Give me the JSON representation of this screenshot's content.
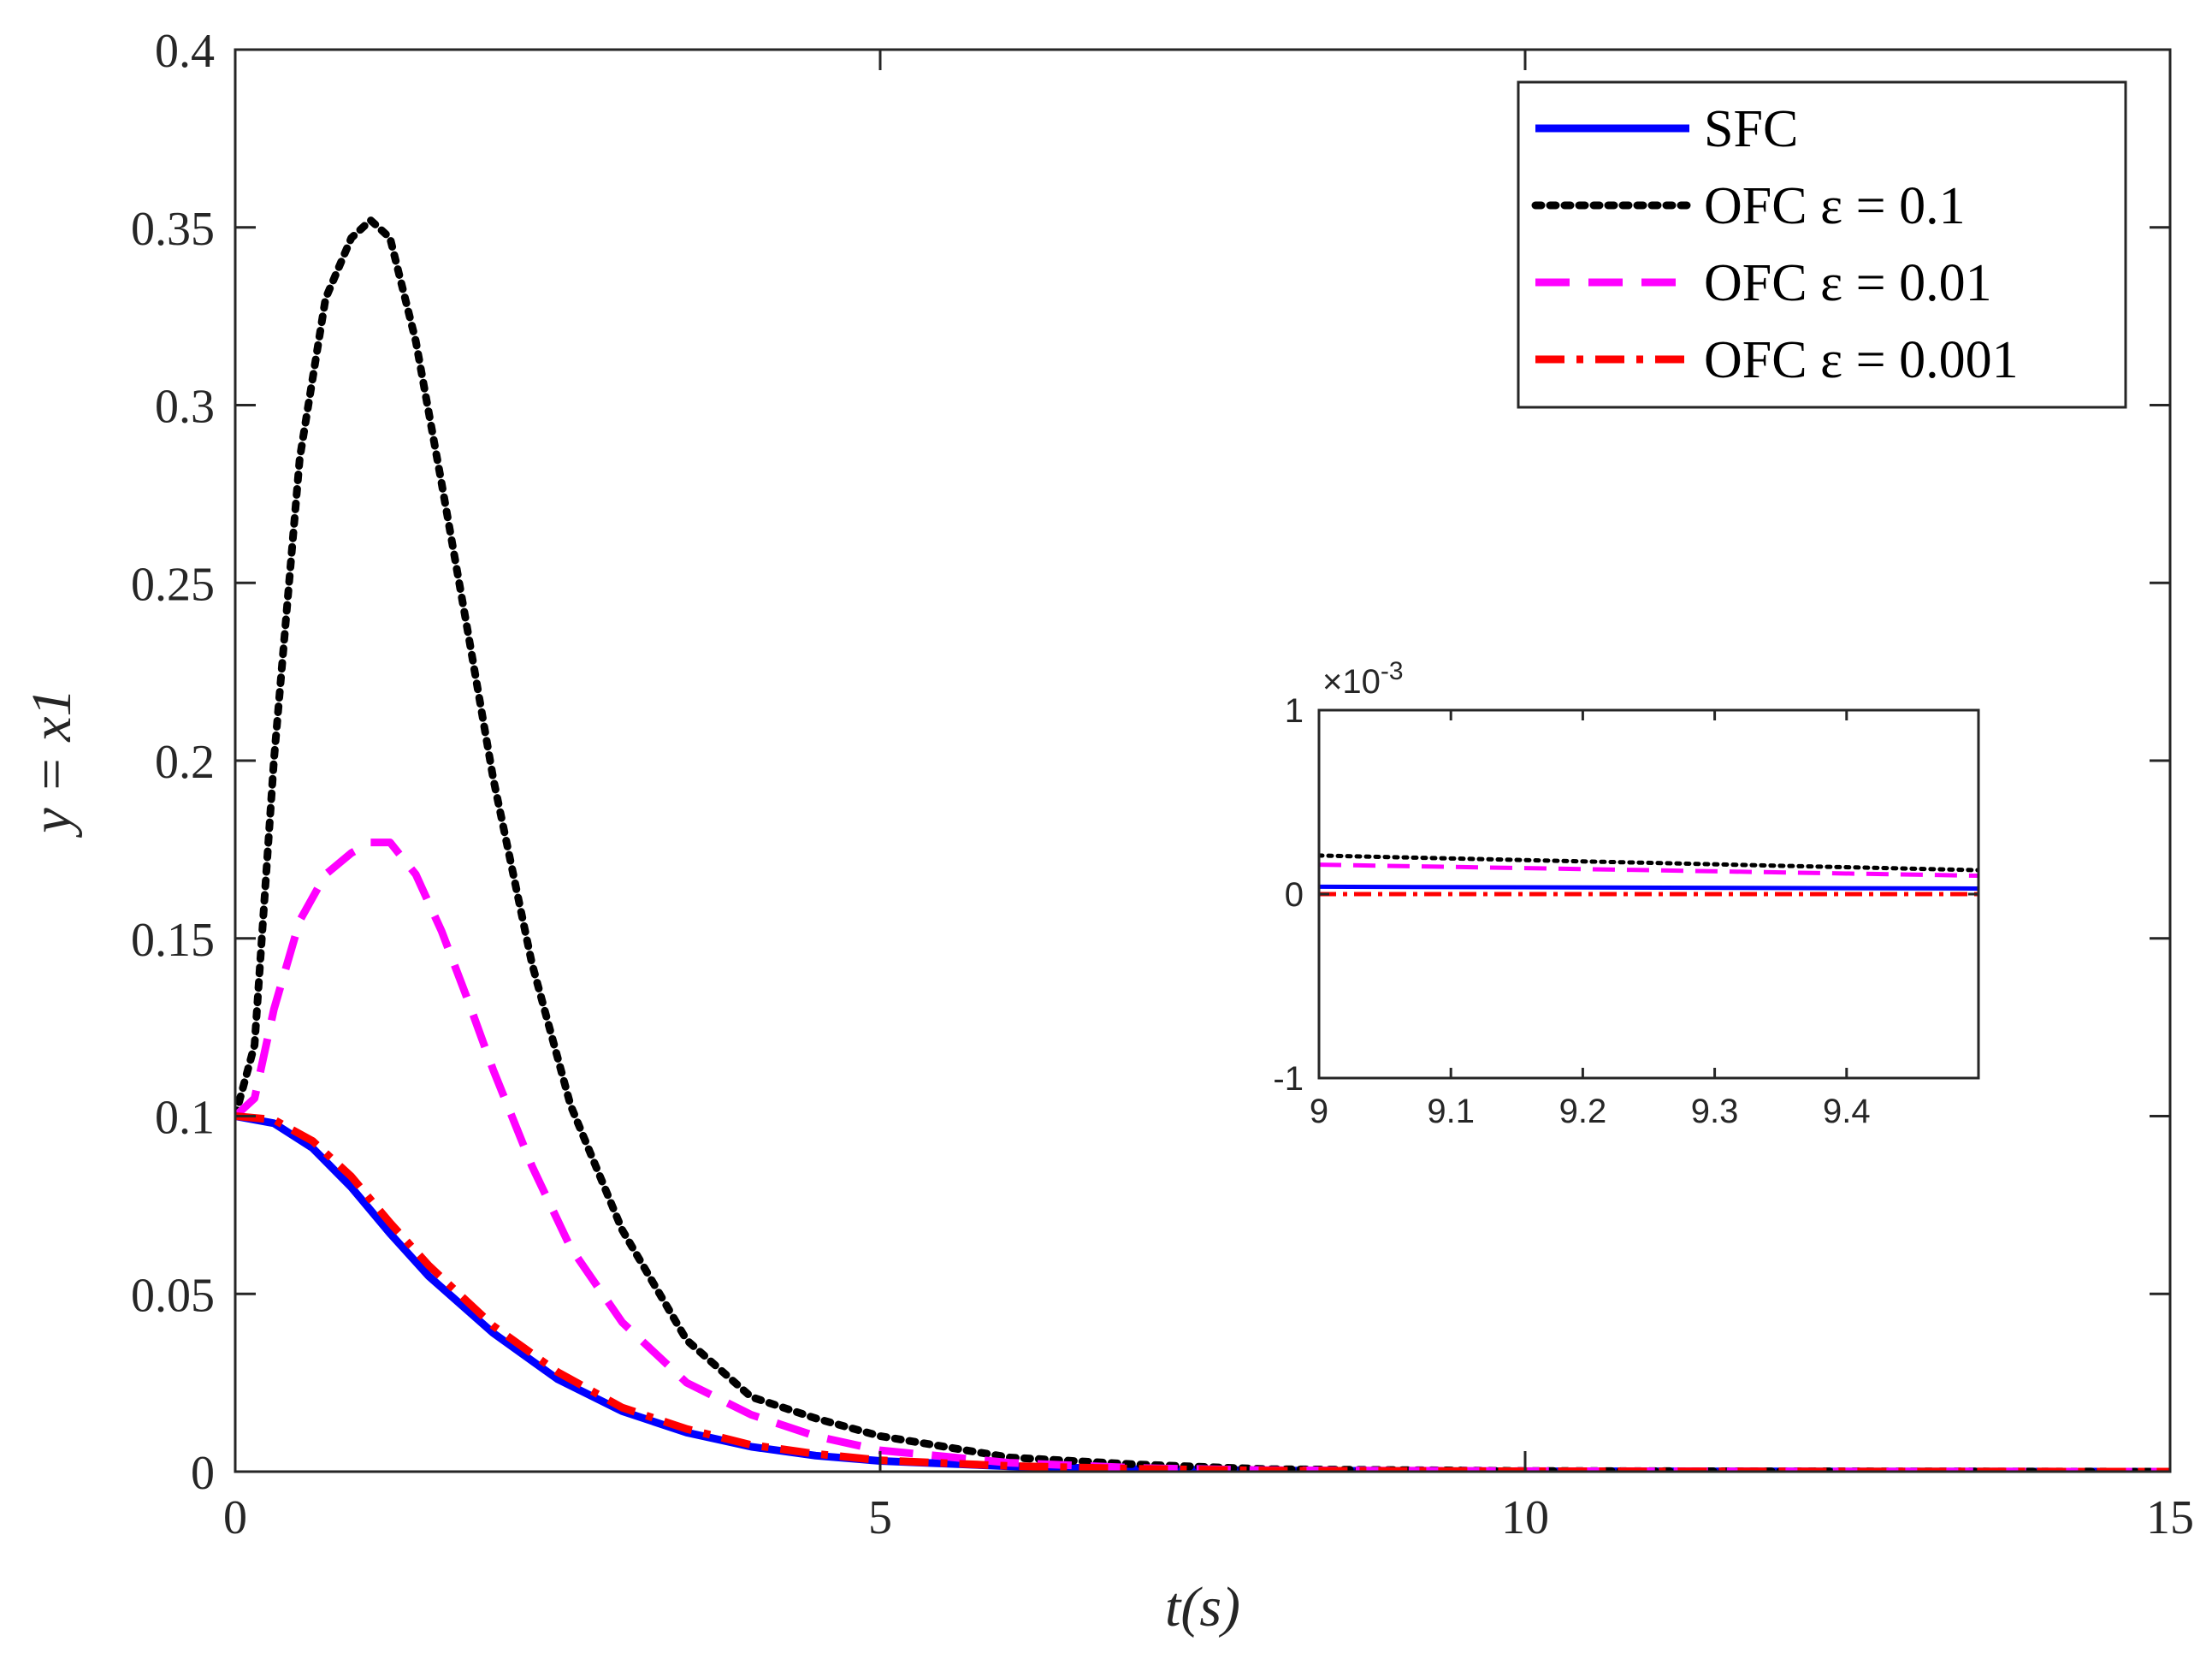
{
  "chart_data": [
    {
      "type": "line",
      "title": "",
      "xlabel": "t(s)",
      "ylabel": "y = x1",
      "xlim": [
        0,
        15
      ],
      "ylim": [
        0,
        0.4
      ],
      "xticks": [
        "0",
        "5",
        "10",
        "15"
      ],
      "xtick_values": [
        0,
        5,
        10,
        15
      ],
      "yticks": [
        "0",
        "0.05",
        "0.1",
        "0.15",
        "0.2",
        "0.25",
        "0.3",
        "0.35",
        "0.4"
      ],
      "ytick_values": [
        0,
        0.05,
        0.1,
        0.15,
        0.2,
        0.25,
        0.3,
        0.35,
        0.4
      ],
      "grid": false,
      "legend_position": "top-right",
      "series": [
        {
          "name": "SFC",
          "legend_label": "SFC",
          "color": "#0000ff",
          "style": "solid",
          "x": [
            0,
            0.3,
            0.6,
            0.9,
            1.2,
            1.5,
            2.0,
            2.5,
            3.0,
            3.5,
            4.0,
            4.5,
            5.0,
            6.0,
            7.0,
            8.0,
            10.0,
            12.0,
            15.0
          ],
          "y": [
            0.1,
            0.098,
            0.091,
            0.08,
            0.067,
            0.055,
            0.039,
            0.026,
            0.017,
            0.011,
            0.007,
            0.0045,
            0.003,
            0.0015,
            0.0007,
            0.0003,
            0.0001,
            5e-05,
            0.0
          ]
        },
        {
          "name": "OFC eps=0.1",
          "legend_label": "OFC ε = 0.1",
          "color": "#000000",
          "style": "dotted",
          "x": [
            0,
            0.15,
            0.3,
            0.5,
            0.7,
            0.9,
            1.05,
            1.2,
            1.4,
            1.6,
            1.8,
            2.0,
            2.3,
            2.6,
            3.0,
            3.5,
            4.0,
            4.5,
            5.0,
            5.5,
            6.0,
            7.0,
            8.0,
            10.0,
            12.0,
            15.0
          ],
          "y": [
            0.1,
            0.12,
            0.2,
            0.285,
            0.33,
            0.347,
            0.352,
            0.347,
            0.318,
            0.278,
            0.237,
            0.195,
            0.143,
            0.103,
            0.068,
            0.037,
            0.021,
            0.015,
            0.01,
            0.007,
            0.004,
            0.002,
            0.0007,
            0.0002,
            0.0001,
            0.0
          ]
        },
        {
          "name": "OFC eps=0.01",
          "legend_label": "OFC ε = 0.01",
          "color": "#ff00ff",
          "style": "dashed",
          "x": [
            0,
            0.15,
            0.3,
            0.5,
            0.7,
            0.9,
            1.05,
            1.2,
            1.4,
            1.6,
            1.8,
            2.0,
            2.3,
            2.6,
            3.0,
            3.5,
            4.0,
            4.5,
            5.0,
            6.0,
            7.0,
            8.0,
            10.0,
            12.0,
            15.0
          ],
          "y": [
            0.1,
            0.105,
            0.13,
            0.155,
            0.168,
            0.174,
            0.177,
            0.177,
            0.168,
            0.152,
            0.133,
            0.113,
            0.086,
            0.063,
            0.042,
            0.025,
            0.016,
            0.01,
            0.006,
            0.0025,
            0.001,
            0.0004,
            0.00015,
            5e-05,
            0.0
          ]
        },
        {
          "name": "OFC eps=0.001",
          "legend_label": "OFC ε = 0.001",
          "color": "#ff0000",
          "style": "dashdot",
          "x": [
            0,
            0.3,
            0.6,
            0.9,
            1.2,
            1.5,
            2.0,
            2.5,
            3.0,
            3.5,
            4.0,
            4.5,
            5.0,
            6.0,
            7.0,
            8.0,
            10.0,
            12.0,
            15.0
          ],
          "y": [
            0.1,
            0.099,
            0.093,
            0.083,
            0.07,
            0.058,
            0.041,
            0.028,
            0.018,
            0.012,
            0.0075,
            0.005,
            0.0032,
            0.0016,
            0.0008,
            0.0003,
            0.0001,
            5e-05,
            0.0
          ]
        }
      ]
    },
    {
      "type": "line",
      "title": "",
      "xlabel": "",
      "ylabel": "",
      "xlim": [
        9,
        9.5
      ],
      "ylim": [
        -1,
        1
      ],
      "y_multiplier": "×10-3",
      "y_multiplier_base": "×10",
      "y_multiplier_exp": "-3",
      "xticks": [
        "9",
        "9.1",
        "9.2",
        "9.3",
        "9.4"
      ],
      "xtick_values": [
        9,
        9.1,
        9.2,
        9.3,
        9.4
      ],
      "yticks": [
        "-1",
        "0",
        "1"
      ],
      "ytick_values": [
        -1,
        0,
        1
      ],
      "grid": false,
      "series": [
        {
          "name": "SFC",
          "color": "#0000ff",
          "style": "solid",
          "x": [
            9,
            9.5
          ],
          "y": [
            0.04,
            0.03
          ]
        },
        {
          "name": "OFC eps=0.1",
          "color": "#000000",
          "style": "dotted",
          "x": [
            9,
            9.5
          ],
          "y": [
            0.21,
            0.13
          ]
        },
        {
          "name": "OFC eps=0.01",
          "color": "#ff00ff",
          "style": "dashed",
          "x": [
            9,
            9.5
          ],
          "y": [
            0.16,
            0.1
          ]
        },
        {
          "name": "OFC eps=0.001",
          "color": "#ff0000",
          "style": "dashdot",
          "x": [
            9,
            9.5
          ],
          "y": [
            0.0,
            0.0
          ]
        }
      ]
    }
  ]
}
